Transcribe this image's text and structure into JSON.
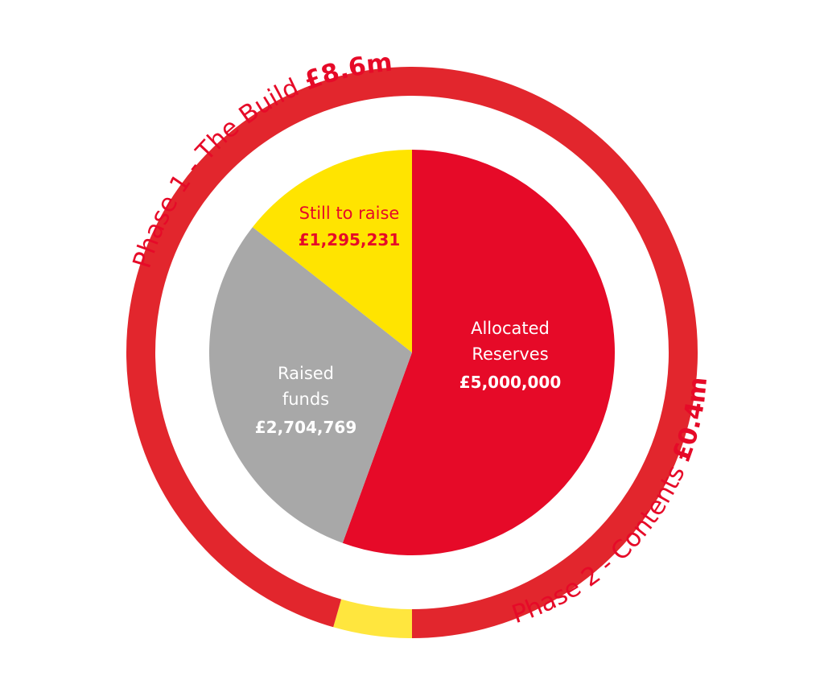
{
  "colors": {
    "red": "#e60a28",
    "ring_red": "#e2262d",
    "yellow": "#ffe400",
    "ring_yellow": "#ffe63e",
    "grey": "#a8a8a8",
    "label_red": "#e60a28",
    "label_white": "#ffffff",
    "background": "#ffffff"
  },
  "chart_data": {
    "type": "pie",
    "title": "",
    "slices": [
      {
        "label_lines": [
          "Allocated",
          "Reserves"
        ],
        "value": 5000000,
        "value_label": "£5,000,000",
        "color": "#e60a28"
      },
      {
        "label_lines": [
          "Raised",
          "funds"
        ],
        "value": 2704769,
        "value_label": "£2,704,769",
        "color": "#a8a8a8"
      },
      {
        "label_lines": [
          "Still to raise"
        ],
        "value": 1295231,
        "value_label": "£1,295,231",
        "color": "#ffe400"
      }
    ],
    "outer_ring": [
      {
        "name": "Phase 1 - The Build",
        "amount_label": "£8.6m",
        "value": 8.6,
        "color": "#e2262d"
      },
      {
        "name": "Phase 2 - Contents",
        "amount_label": "£0.4m",
        "value": 0.4,
        "color": "#ffe63e"
      }
    ]
  }
}
